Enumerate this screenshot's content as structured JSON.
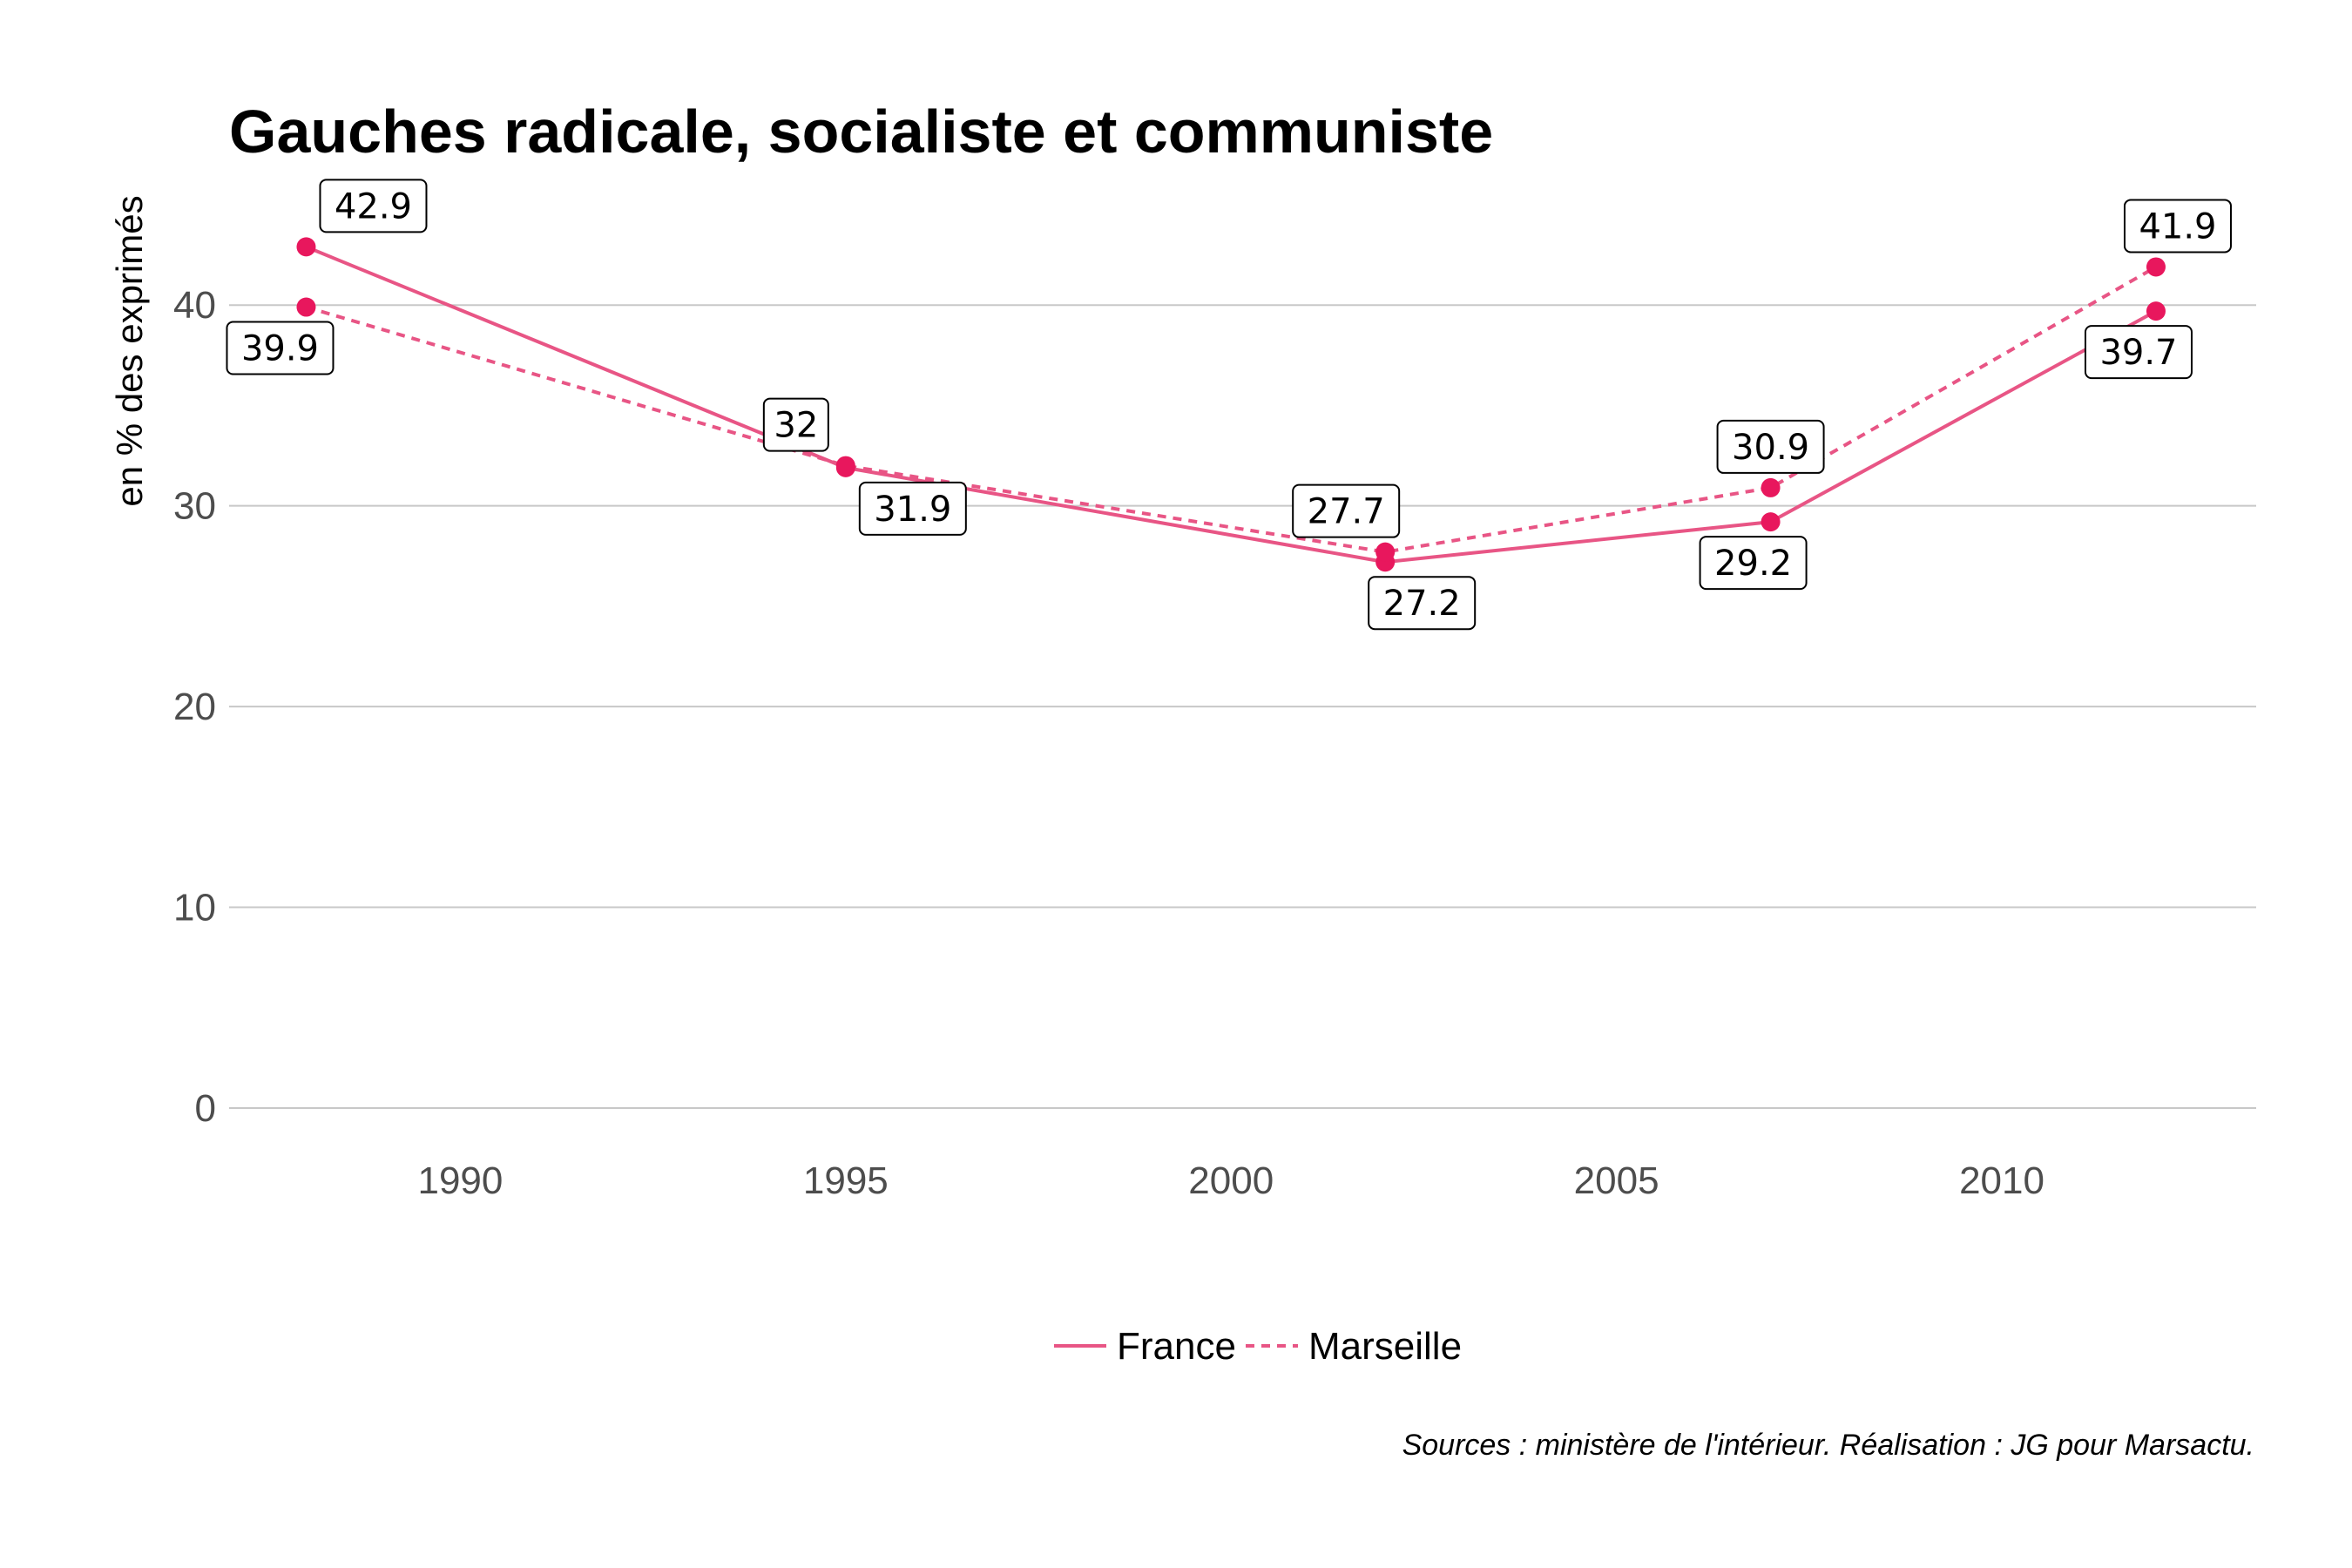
{
  "chart_data": {
    "type": "line",
    "title": "Gauches radicale, socialiste et communiste",
    "ylabel": "en % des exprimés",
    "xlabel": "",
    "xlim": [
      1987,
      2013.3
    ],
    "ylim": [
      0,
      45
    ],
    "x_ticks": [
      1990,
      1995,
      2000,
      2005,
      2010
    ],
    "y_ticks": [
      0,
      10,
      20,
      30,
      40
    ],
    "color": "#e8175d",
    "series": [
      {
        "name": "France",
        "style": "solid",
        "x": [
          1988,
          1995,
          2002,
          2007,
          2012
        ],
        "values": [
          42.9,
          31.9,
          27.2,
          29.2,
          39.7
        ],
        "labels": [
          "42.9",
          "31.9",
          "27.2",
          "29.2",
          "39.7"
        ],
        "label_side": [
          "above",
          "below",
          "below",
          "below",
          "below"
        ]
      },
      {
        "name": "Marseille",
        "style": "dashed",
        "x": [
          1988,
          1995,
          2002,
          2007,
          2012
        ],
        "values": [
          39.9,
          32,
          27.7,
          30.9,
          41.9
        ],
        "labels": [
          "39.9",
          "32",
          "27.7",
          "30.9",
          "41.9"
        ],
        "label_side": [
          "below",
          "above",
          "above",
          "above",
          "above"
        ]
      }
    ],
    "legend": {
      "position": "bottom",
      "entries": [
        "France",
        "Marseille"
      ]
    },
    "caption": "Sources : ministère de l'intérieur. Réalisation : JG pour Marsactu."
  }
}
